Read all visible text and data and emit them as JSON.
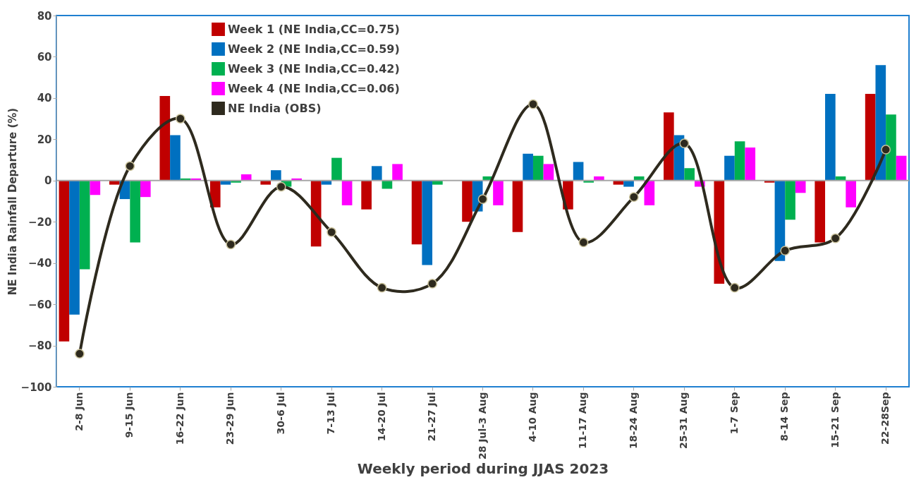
{
  "chart_data": {
    "type": "bar",
    "xlabel": "Weekly period during JJAS 2023",
    "ylabel": "NE India Rainfall Departure (%)",
    "categories": [
      "2-8 Jun",
      "9-15 Jun",
      "16-22 Jun",
      "23-29 Jun",
      "30-6 Jul",
      "7-13 Jul",
      "14-20 Jul",
      "21-27 Jul",
      "28 Jul-3 Aug",
      "4-10 Aug",
      "11-17 Aug",
      "18-24 Aug",
      "25-31 Aug",
      "1-7 Sep",
      "8-14 Sep",
      "15-21 Sep",
      "22-28Sep"
    ],
    "series": [
      {
        "name": "Week 1 (NE India,CC=0.75)",
        "color": "#c00000",
        "values": [
          -78,
          -2,
          41,
          -13,
          -2,
          -32,
          -14,
          -31,
          -20,
          -25,
          -14,
          -2,
          33,
          -50,
          -1,
          -30,
          42
        ]
      },
      {
        "name": "Week 2 (NE India,CC=0.59)",
        "color": "#0070c0",
        "values": [
          -65,
          -9,
          22,
          -2,
          5,
          -2,
          7,
          -41,
          -15,
          13,
          9,
          -3,
          22,
          12,
          -39,
          42,
          56
        ]
      },
      {
        "name": "Week 3 (NE India,CC=0.42)",
        "color": "#00b050",
        "values": [
          -43,
          -30,
          1,
          -1,
          -3,
          11,
          -4,
          -2,
          2,
          12,
          -1,
          2,
          6,
          19,
          -19,
          2,
          32
        ]
      },
      {
        "name": "Week 4 (NE India,CC=0.06)",
        "color": "#ff00ff",
        "values": [
          -7,
          -8,
          1,
          3,
          1,
          -12,
          8,
          0,
          -12,
          8,
          2,
          -12,
          -3,
          16,
          -6,
          -13,
          12
        ]
      },
      {
        "name": "NE India (OBS)",
        "color": "#2e2a1e",
        "type": "line",
        "marker": "circle",
        "values": [
          -84,
          7,
          30,
          -31,
          -3,
          -25,
          -52,
          -50,
          -9,
          37,
          -30,
          -8,
          18,
          -52,
          -34,
          -28,
          15
        ]
      }
    ],
    "ylim": [
      -100,
      80
    ],
    "yticks": [
      -100,
      -80,
      -60,
      -40,
      -20,
      0,
      20,
      40,
      60,
      80
    ],
    "ref_lines": [
      {
        "axis": "y",
        "value": 0,
        "color": "#a6a6a6"
      }
    ],
    "grid": false,
    "legend": "top left"
  }
}
